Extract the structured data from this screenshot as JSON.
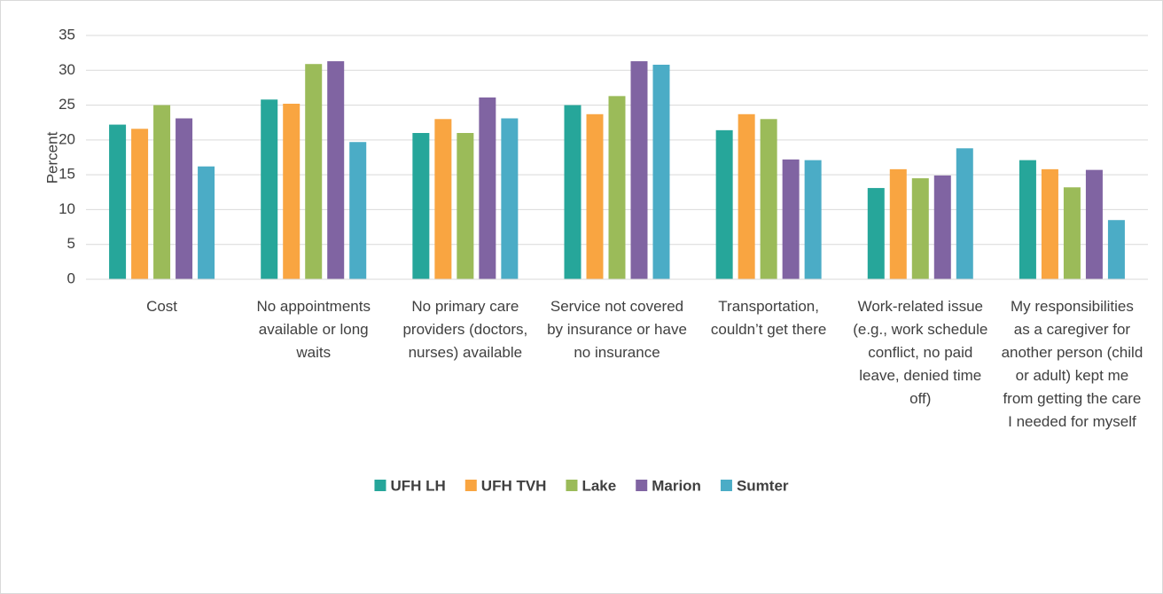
{
  "chart_data": {
    "type": "bar",
    "categories": [
      "Cost",
      "No appointments available or long waits",
      "No primary care providers (doctors, nurses) available",
      "Service not covered by insurance or have no insurance",
      "Transportation, couldn’t get there",
      "Work-related issue (e.g., work schedule conflict, no paid leave, denied time off)",
      "My responsibilities as a caregiver for another person (child or adult) kept me from getting the care I needed for myself"
    ],
    "series": [
      {
        "name": "UFH LH",
        "color": "#26a69a",
        "values": [
          22.2,
          25.8,
          21.0,
          25.0,
          21.4,
          13.1,
          17.1
        ]
      },
      {
        "name": "UFH TVH",
        "color": "#f9a541",
        "values": [
          21.6,
          25.2,
          23.0,
          23.7,
          23.7,
          15.8,
          15.8
        ]
      },
      {
        "name": "Lake",
        "color": "#9bbb59",
        "values": [
          25.0,
          30.9,
          21.0,
          26.3,
          23.0,
          14.5,
          13.2
        ]
      },
      {
        "name": "Marion",
        "color": "#8064a2",
        "values": [
          23.1,
          31.3,
          26.1,
          31.3,
          17.2,
          14.9,
          15.7
        ]
      },
      {
        "name": "Sumter",
        "color": "#4bacc6",
        "values": [
          16.2,
          19.7,
          23.1,
          30.8,
          17.1,
          18.8,
          8.5
        ]
      }
    ],
    "y_label": "Percent",
    "ylim": [
      0,
      35
    ],
    "yticks": [
      0,
      5,
      10,
      15,
      20,
      25,
      30,
      35
    ],
    "grid": true,
    "legend": "bottom"
  }
}
